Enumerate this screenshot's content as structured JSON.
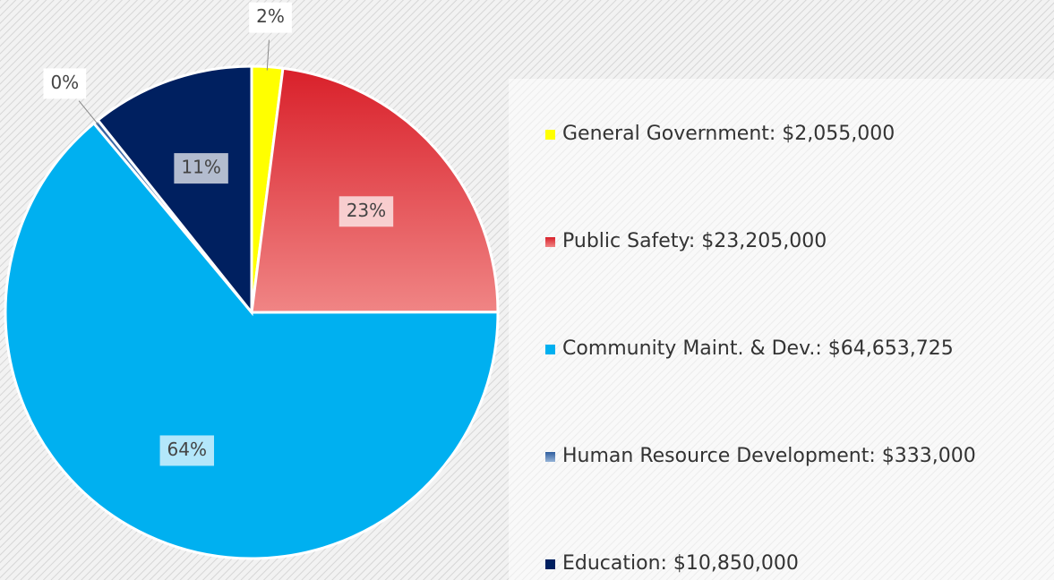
{
  "chart_data": {
    "type": "pie",
    "categories": [
      "General Government: $2,055,000",
      "Public Safety: $23,205,000",
      "Community Maint. & Dev.: $64,653,725",
      "Human Resource Development: $333,000",
      "Education: $10,850,000"
    ],
    "values": [
      2.03,
      22.95,
      63.95,
      0.33,
      10.73
    ],
    "value_labels": [
      "2%",
      "23%",
      "64%",
      "0%",
      "11%"
    ],
    "colors": [
      "#ffff00",
      "#e2343b",
      "#00b0f0",
      "#4f81bd",
      "#002060"
    ],
    "legend": "right"
  }
}
